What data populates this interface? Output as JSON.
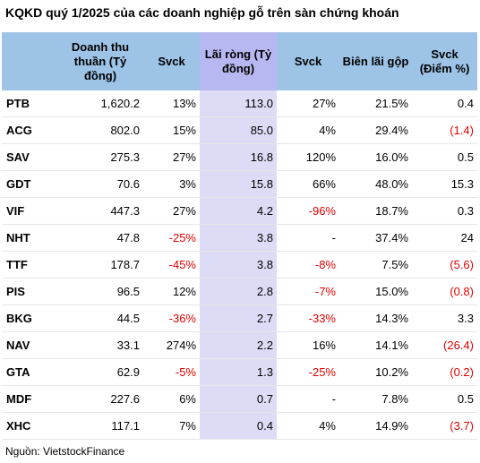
{
  "title": "KQKD quý 1/2025 của các doanh nghiệp gỗ trên sàn chứng khoán",
  "source": "Nguồn: VietstockFinance",
  "colors": {
    "header": "#9dc3e6",
    "highlight": "#dcdcf6",
    "negative": "#e00000"
  },
  "chart_data": {
    "type": "table",
    "title": "KQKD quý 1/2025 của các doanh nghiệp gỗ trên sàn chứng khoán",
    "columns": [
      {
        "key": "ticker",
        "label": ""
      },
      {
        "key": "revenue",
        "label": "Doanh thu thuần (Tỷ đồng)"
      },
      {
        "key": "revenue_yoy",
        "label": "Svck"
      },
      {
        "key": "net_profit",
        "label": "Lãi ròng (Tỷ đồng)"
      },
      {
        "key": "profit_yoy",
        "label": "Svck"
      },
      {
        "key": "gross_margin",
        "label": "Biên lãi gộp"
      },
      {
        "key": "margin_yoy",
        "label": "Svck (Điểm %)"
      }
    ],
    "rows": [
      [
        "PTB",
        "1,620.2",
        "13%",
        "113.0",
        "27%",
        "21.5%",
        "0.4"
      ],
      [
        "ACG",
        "802.0",
        "15%",
        "85.0",
        "4%",
        "29.4%",
        "(1.4)"
      ],
      [
        "SAV",
        "275.3",
        "27%",
        "16.8",
        "120%",
        "16.0%",
        "0.5"
      ],
      [
        "GDT",
        "70.6",
        "3%",
        "15.8",
        "66%",
        "48.0%",
        "15.3"
      ],
      [
        "VIF",
        "447.3",
        "27%",
        "4.2",
        "-96%",
        "18.7%",
        "0.3"
      ],
      [
        "NHT",
        "47.8",
        "-25%",
        "3.8",
        "-",
        "37.4%",
        "24"
      ],
      [
        "TTF",
        "178.7",
        "-45%",
        "3.8",
        "-8%",
        "7.5%",
        "(5.6)"
      ],
      [
        "PIS",
        "96.5",
        "12%",
        "2.8",
        "-7%",
        "15.0%",
        "(0.8)"
      ],
      [
        "BKG",
        "44.5",
        "-36%",
        "2.7",
        "-33%",
        "14.3%",
        "3.3"
      ],
      [
        "NAV",
        "33.1",
        "274%",
        "2.2",
        "16%",
        "14.1%",
        "(26.4)"
      ],
      [
        "GTA",
        "62.9",
        "-5%",
        "1.3",
        "-25%",
        "10.2%",
        "(0.2)"
      ],
      [
        "MDF",
        "227.6",
        "6%",
        "0.7",
        "-",
        "7.8%",
        "0.5"
      ],
      [
        "XHC",
        "117.1",
        "7%",
        "0.4",
        "4%",
        "14.9%",
        "(3.7)"
      ]
    ]
  }
}
